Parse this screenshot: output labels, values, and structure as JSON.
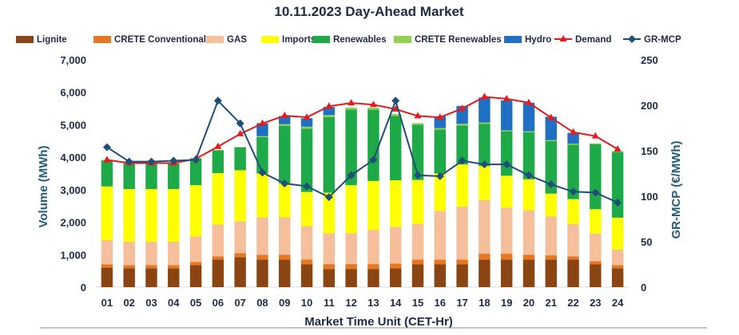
{
  "chart_data": {
    "type": "bar",
    "title": "10.11.2023  Day-Ahead Market",
    "xlabel": "Market Time Unit (CET-Hr)",
    "ylabel": "Volume (MWh)",
    "y2label": "GR-MCP (€/MWh)",
    "ylim": [
      0,
      7000
    ],
    "y2lim": [
      0,
      250
    ],
    "yticks": [
      "0",
      "1,000",
      "2,000",
      "3,000",
      "4,000",
      "5,000",
      "6,000",
      "7,000"
    ],
    "y2ticks": [
      "0",
      "50",
      "100",
      "150",
      "200",
      "250"
    ],
    "categories": [
      "01",
      "02",
      "03",
      "04",
      "05",
      "06",
      "07",
      "08",
      "09",
      "10",
      "11",
      "12",
      "13",
      "14",
      "15",
      "16",
      "17",
      "18",
      "19",
      "20",
      "21",
      "22",
      "23",
      "24"
    ],
    "series": [
      {
        "name": "Lignite",
        "color": "#8B4513",
        "kind": "bar",
        "values": [
          600,
          580,
          580,
          580,
          680,
          850,
          920,
          850,
          850,
          700,
          560,
          560,
          560,
          580,
          700,
          700,
          700,
          850,
          850,
          850,
          850,
          850,
          700,
          580
        ]
      },
      {
        "name": "CRETE Conventional",
        "color": "#E87722",
        "kind": "bar",
        "values": [
          100,
          100,
          100,
          100,
          100,
          100,
          130,
          150,
          150,
          150,
          150,
          150,
          150,
          150,
          150,
          150,
          150,
          180,
          180,
          150,
          130,
          100,
          100,
          100
        ]
      },
      {
        "name": "GAS",
        "color": "#F4BF9A",
        "kind": "bar",
        "values": [
          750,
          720,
          720,
          720,
          780,
          980,
          980,
          1150,
          1150,
          1030,
          950,
          950,
          1050,
          1130,
          1100,
          1500,
          1630,
          1650,
          1420,
          1370,
          1200,
          1000,
          850,
          480
        ]
      },
      {
        "name": "Imports",
        "color": "#FFFF00",
        "kind": "bar",
        "values": [
          1650,
          1620,
          1620,
          1620,
          1580,
          1580,
          1570,
          1350,
          1050,
          1050,
          1250,
          1480,
          1510,
          1430,
          1350,
          1150,
          1300,
          1050,
          980,
          950,
          700,
          760,
          750,
          980
        ]
      },
      {
        "name": "Renewables",
        "color": "#1FAA4A",
        "kind": "bar",
        "values": [
          800,
          790,
          790,
          790,
          820,
          700,
          700,
          1120,
          1770,
          1950,
          2330,
          2330,
          2200,
          1980,
          1700,
          1350,
          1200,
          1300,
          1370,
          1450,
          1620,
          1680,
          2000,
          2020
        ]
      },
      {
        "name": "CRETE Renewables",
        "color": "#92D050",
        "kind": "bar",
        "values": [
          20,
          20,
          20,
          20,
          20,
          20,
          20,
          30,
          50,
          60,
          60,
          60,
          60,
          60,
          50,
          50,
          50,
          40,
          30,
          30,
          30,
          30,
          30,
          30
        ]
      },
      {
        "name": "Hydro",
        "color": "#1F6FC5",
        "kind": "bar",
        "values": [
          0,
          0,
          0,
          0,
          0,
          0,
          0,
          400,
          250,
          260,
          250,
          0,
          0,
          0,
          0,
          360,
          550,
          770,
          920,
          880,
          720,
          330,
          0,
          0
        ]
      },
      {
        "name": "Demand",
        "color": "#E41A1C",
        "kind": "line",
        "axis": "left",
        "values": [
          3920,
          3820,
          3820,
          3820,
          3950,
          4330,
          4720,
          5040,
          5280,
          5230,
          5570,
          5670,
          5620,
          5480,
          5270,
          5230,
          5500,
          5860,
          5800,
          5680,
          5220,
          4770,
          4650,
          4250
        ]
      },
      {
        "name": "GR-MCP",
        "color": "#1F4E79",
        "kind": "line",
        "axis": "right",
        "values": [
          154,
          138,
          138,
          139,
          140,
          205,
          180,
          126,
          114,
          111,
          99,
          123,
          140,
          205,
          123,
          122,
          139,
          135,
          135,
          123,
          113,
          105,
          104,
          93
        ]
      }
    ]
  }
}
